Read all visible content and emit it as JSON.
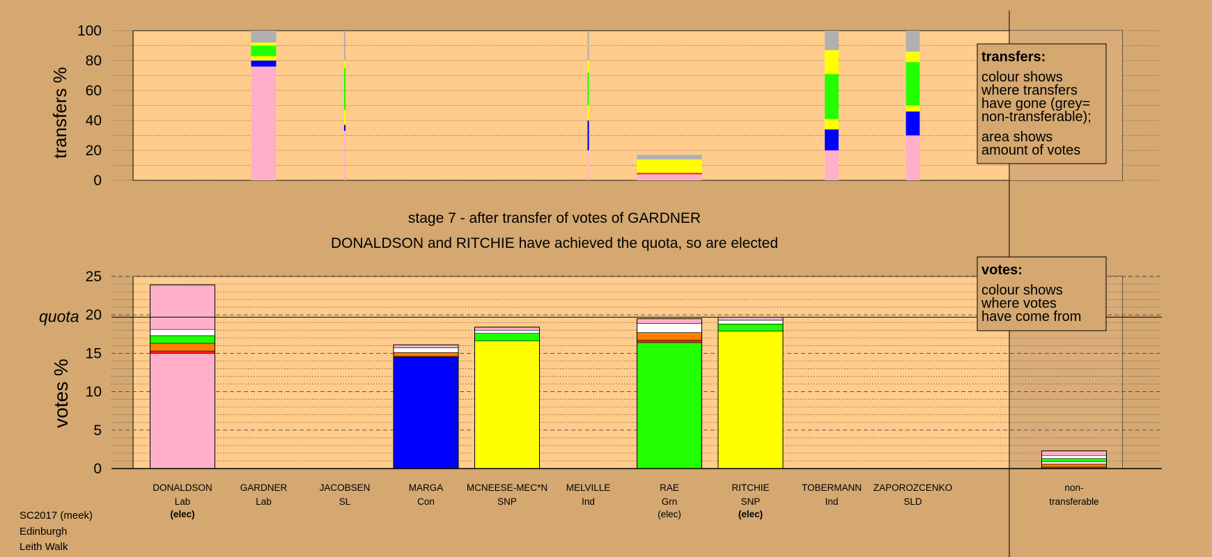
{
  "stage_title": "stage 7 - after transfer of votes of GARDNER",
  "stage_subtitle": "DONALDSON and RITCHIE have achieved the quota, so are elected",
  "footer": [
    "SC2017 (meek)",
    "Edinburgh",
    "Leith Walk"
  ],
  "quota_label": "quota",
  "quota_value": 19.7,
  "legend_transfers": {
    "title": "transfers:",
    "lines1": [
      "colour shows",
      "where transfers",
      "have gone (grey=",
      "non-transferable);"
    ],
    "lines2": [
      "area shows",
      "amount of votes"
    ]
  },
  "legend_votes": {
    "title": "votes:",
    "lines": [
      "colour shows",
      "where votes",
      "have come from"
    ]
  },
  "colors": {
    "background": "#D4A870",
    "plot": "#FFCC8C",
    "Lab": "#FFB0C8",
    "Con": "#0000FF",
    "SNP": "#FFFF00",
    "Grn": "#22FF00",
    "SL": "#FF2020",
    "Ind": "#FFFFFF",
    "SLD": "#FF8000",
    "nontransferable": "#B0B0B0"
  },
  "candidates": [
    {
      "name": "DONALDSON",
      "party": "Lab",
      "status": "(elec)",
      "bold": true
    },
    {
      "name": "GARDNER",
      "party": "Lab",
      "status": "",
      "bold": false
    },
    {
      "name": "JACOBSEN",
      "party": "SL",
      "status": "",
      "bold": false
    },
    {
      "name": "MARGA",
      "party": "Con",
      "status": "",
      "bold": false
    },
    {
      "name": "MCNEESE-MEC*N",
      "party": "SNP",
      "status": "",
      "bold": false
    },
    {
      "name": "MELVILLE",
      "party": "Ind",
      "status": "",
      "bold": false
    },
    {
      "name": "RAE",
      "party": "Grn",
      "status": "(elec)",
      "bold": false
    },
    {
      "name": "RITCHIE",
      "party": "SNP",
      "status": "(elec)",
      "bold": true
    },
    {
      "name": "TOBERMANN",
      "party": "Ind",
      "status": "",
      "bold": false
    },
    {
      "name": "ZAPOROZCENKO",
      "party": "SLD",
      "status": "",
      "bold": false
    }
  ],
  "nontransferable_label": [
    "non-",
    "transferable"
  ],
  "chart_data": [
    {
      "type": "bar",
      "ylabel": "transfers %",
      "ylim": [
        0,
        100
      ],
      "yticks": [
        0,
        20,
        40,
        60,
        80,
        100
      ],
      "bars": [
        {
          "index": 1,
          "width": 1.0,
          "segments": [
            {
              "color": "Lab",
              "value": 76
            },
            {
              "color": "Con",
              "value": 4
            },
            {
              "color": "SNP",
              "value": 3
            },
            {
              "color": "Grn",
              "value": 7
            },
            {
              "color": "SNP",
              "value": 2
            },
            {
              "color": "nontransferable",
              "value": 8
            }
          ]
        },
        {
          "index": 2,
          "width": 0.06,
          "segments": [
            {
              "color": "Lab",
              "value": 33
            },
            {
              "color": "Con",
              "value": 4
            },
            {
              "color": "SNP",
              "value": 10
            },
            {
              "color": "Grn",
              "value": 28
            },
            {
              "color": "SNP",
              "value": 5
            },
            {
              "color": "nontransferable",
              "value": 20
            }
          ]
        },
        {
          "index": 5,
          "width": 0.06,
          "segments": [
            {
              "color": "Lab",
              "value": 20
            },
            {
              "color": "Con",
              "value": 20
            },
            {
              "color": "SNP",
              "value": 10
            },
            {
              "color": "Grn",
              "value": 22
            },
            {
              "color": "SNP",
              "value": 8
            },
            {
              "color": "nontransferable",
              "value": 20
            }
          ]
        },
        {
          "index": 6,
          "width": 2.6,
          "segments": [
            {
              "color": "Lab",
              "value": 4
            },
            {
              "color": "SL",
              "value": 1
            },
            {
              "color": "SNP",
              "value": 9
            },
            {
              "color": "nontransferable",
              "value": 3
            }
          ]
        },
        {
          "index": 8,
          "width": 0.55,
          "segments": [
            {
              "color": "Lab",
              "value": 20
            },
            {
              "color": "Con",
              "value": 14
            },
            {
              "color": "SNP",
              "value": 7
            },
            {
              "color": "Grn",
              "value": 30
            },
            {
              "color": "SNP",
              "value": 16
            },
            {
              "color": "nontransferable",
              "value": 13
            }
          ]
        },
        {
          "index": 9,
          "width": 0.55,
          "segments": [
            {
              "color": "Lab",
              "value": 30
            },
            {
              "color": "Con",
              "value": 16
            },
            {
              "color": "SNP",
              "value": 4
            },
            {
              "color": "Grn",
              "value": 29
            },
            {
              "color": "SNP",
              "value": 7
            },
            {
              "color": "nontransferable",
              "value": 14
            }
          ]
        }
      ]
    },
    {
      "type": "bar",
      "ylabel": "votes %",
      "ylim": [
        0,
        25
      ],
      "yticks": [
        0,
        5,
        10,
        15,
        20,
        25
      ],
      "bars": [
        {
          "index": 0,
          "segments": [
            {
              "color": "Lab",
              "value": 15.0
            },
            {
              "color": "SL",
              "value": 0.3
            },
            {
              "color": "SLD",
              "value": 1.0
            },
            {
              "color": "Grn",
              "value": 1.0
            },
            {
              "color": "Ind",
              "value": 0.8
            },
            {
              "color": "Lab",
              "value": 5.8
            }
          ]
        },
        {
          "index": 3,
          "segments": [
            {
              "color": "Con",
              "value": 14.5
            },
            {
              "color": "SL",
              "value": 0.1
            },
            {
              "color": "SLD",
              "value": 0.5
            },
            {
              "color": "Ind",
              "value": 0.6
            },
            {
              "color": "Lab",
              "value": 0.4
            }
          ]
        },
        {
          "index": 4,
          "segments": [
            {
              "color": "SNP",
              "value": 16.6
            },
            {
              "color": "Grn",
              "value": 1.0
            },
            {
              "color": "Ind",
              "value": 0.4
            },
            {
              "color": "Lab",
              "value": 0.4
            }
          ]
        },
        {
          "index": 6,
          "segments": [
            {
              "color": "Grn",
              "value": 16.4
            },
            {
              "color": "SL",
              "value": 0.3
            },
            {
              "color": "SLD",
              "value": 1.0
            },
            {
              "color": "Ind",
              "value": 1.2
            },
            {
              "color": "Lab",
              "value": 0.6
            }
          ]
        },
        {
          "index": 7,
          "segments": [
            {
              "color": "SNP",
              "value": 17.9
            },
            {
              "color": "Grn",
              "value": 0.9
            },
            {
              "color": "Ind",
              "value": 0.5
            },
            {
              "color": "Lab",
              "value": 0.4
            }
          ]
        },
        {
          "index": 10,
          "segments": [
            {
              "color": "SL",
              "value": 0.2
            },
            {
              "color": "SLD",
              "value": 0.4
            },
            {
              "color": "Ind",
              "value": 0.3
            },
            {
              "color": "Grn",
              "value": 0.4
            },
            {
              "color": "Ind",
              "value": 0.4
            },
            {
              "color": "Lab",
              "value": 0.6
            }
          ]
        }
      ]
    }
  ]
}
